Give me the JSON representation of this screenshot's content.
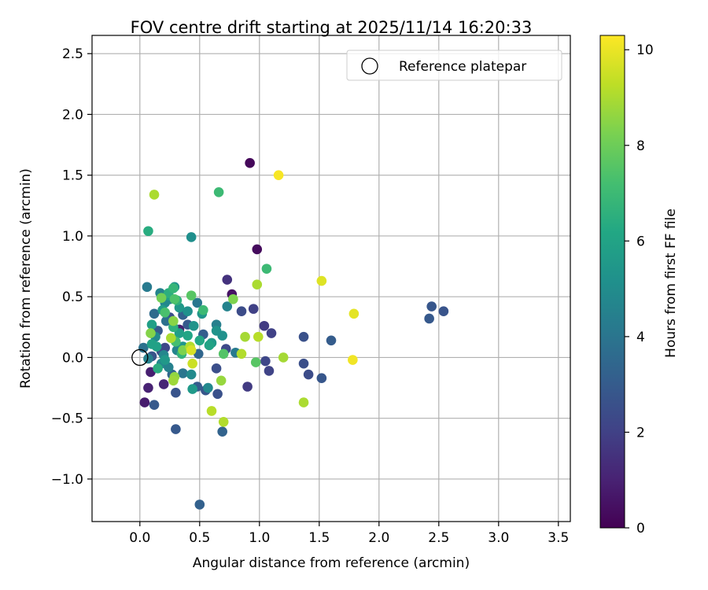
{
  "chart_data": {
    "type": "scatter",
    "title": "FOV centre drift starting at 2025/11/14 16:20:33",
    "xlabel": "Angular distance from reference (arcmin)",
    "ylabel": "Rotation from reference (arcmin)",
    "xlim": [
      -0.4,
      3.6
    ],
    "ylim": [
      -1.35,
      2.65
    ],
    "xticks": [
      0.0,
      0.5,
      1.0,
      1.5,
      2.0,
      2.5,
      3.0,
      3.5
    ],
    "xtick_labels": [
      "0.0",
      "0.5",
      "1.0",
      "1.5",
      "2.0",
      "2.5",
      "3.0",
      "3.5"
    ],
    "yticks": [
      -1.0,
      -0.5,
      0.0,
      0.5,
      1.0,
      1.5,
      2.0,
      2.5
    ],
    "ytick_labels": [
      "−1.0",
      "−0.5",
      "0.0",
      "0.5",
      "1.0",
      "1.5",
      "2.0",
      "2.5"
    ],
    "grid": true,
    "legend": {
      "position": "top-right",
      "label": "Reference platepar"
    },
    "reference_point": {
      "x": 0.0,
      "y": 0.0
    },
    "colorbar": {
      "label": "Hours from first FF file",
      "colormap": "viridis",
      "range": [
        0,
        10.3
      ],
      "ticks": [
        0,
        2,
        4,
        6,
        8,
        10
      ],
      "tick_labels": [
        "0",
        "2",
        "4",
        "6",
        "8",
        "10"
      ]
    },
    "series": [
      {
        "points": [
          {
            "x": 0.92,
            "y": 1.6,
            "hours": 0.2
          },
          {
            "x": 0.98,
            "y": 0.89,
            "hours": 0.3
          },
          {
            "x": 0.77,
            "y": 0.52,
            "hours": 0.5
          },
          {
            "x": 0.04,
            "y": -0.37,
            "hours": 0.8
          },
          {
            "x": 0.07,
            "y": -0.25,
            "hours": 1.0
          },
          {
            "x": 0.09,
            "y": -0.12,
            "hours": 0.9
          },
          {
            "x": 0.2,
            "y": -0.22,
            "hours": 1.1
          },
          {
            "x": 0.33,
            "y": 0.23,
            "hours": 0.9
          },
          {
            "x": 0.73,
            "y": 0.64,
            "hours": 1.5
          },
          {
            "x": 0.95,
            "y": 0.4,
            "hours": 2.0
          },
          {
            "x": 0.9,
            "y": -0.24,
            "hours": 1.8
          },
          {
            "x": 1.04,
            "y": 0.26,
            "hours": 1.8
          },
          {
            "x": 1.1,
            "y": 0.2,
            "hours": 2.0
          },
          {
            "x": 1.05,
            "y": -0.03,
            "hours": 2.2
          },
          {
            "x": 1.08,
            "y": -0.11,
            "hours": 2.1
          },
          {
            "x": 0.85,
            "y": 0.38,
            "hours": 2.4
          },
          {
            "x": 1.37,
            "y": -0.05,
            "hours": 2.5
          },
          {
            "x": 1.41,
            "y": -0.14,
            "hours": 2.4
          },
          {
            "x": 1.52,
            "y": -0.17,
            "hours": 2.8
          },
          {
            "x": 1.37,
            "y": 0.17,
            "hours": 2.6
          },
          {
            "x": 1.6,
            "y": 0.14,
            "hours": 3.0
          },
          {
            "x": 2.44,
            "y": 0.42,
            "hours": 2.8
          },
          {
            "x": 2.42,
            "y": 0.32,
            "hours": 2.9
          },
          {
            "x": 2.54,
            "y": 0.38,
            "hours": 2.7
          },
          {
            "x": 0.3,
            "y": -0.59,
            "hours": 2.9
          },
          {
            "x": 0.5,
            "y": -1.21,
            "hours": 3.2
          },
          {
            "x": 0.69,
            "y": -0.61,
            "hours": 3.3
          },
          {
            "x": 0.65,
            "y": -0.3,
            "hours": 2.6
          },
          {
            "x": 0.55,
            "y": -0.27,
            "hours": 2.8
          },
          {
            "x": 0.48,
            "y": -0.24,
            "hours": 3.0
          },
          {
            "x": 0.12,
            "y": -0.39,
            "hours": 2.9
          },
          {
            "x": 0.3,
            "y": -0.29,
            "hours": 2.7
          },
          {
            "x": 0.1,
            "y": 0.01,
            "hours": 2.7
          },
          {
            "x": 0.18,
            "y": 0.05,
            "hours": 2.6
          },
          {
            "x": 0.21,
            "y": 0.08,
            "hours": 2.2
          },
          {
            "x": 0.64,
            "y": -0.09,
            "hours": 2.5
          },
          {
            "x": 0.72,
            "y": 0.07,
            "hours": 2.3
          },
          {
            "x": 0.15,
            "y": 0.22,
            "hours": 2.9
          },
          {
            "x": 0.25,
            "y": 0.33,
            "hours": 2.5
          },
          {
            "x": 0.4,
            "y": 0.27,
            "hours": 2.9
          },
          {
            "x": 0.53,
            "y": 0.19,
            "hours": 3.1
          },
          {
            "x": 0.49,
            "y": 0.03,
            "hours": 3.4
          },
          {
            "x": 0.27,
            "y": -0.14,
            "hours": 3.4
          },
          {
            "x": 0.36,
            "y": 0.35,
            "hours": 3.2
          },
          {
            "x": 0.12,
            "y": 0.36,
            "hours": 3.6
          },
          {
            "x": 0.22,
            "y": 0.3,
            "hours": 3.8
          },
          {
            "x": 0.06,
            "y": 0.58,
            "hours": 4.2
          },
          {
            "x": 0.36,
            "y": -0.13,
            "hours": 4.0
          },
          {
            "x": 0.03,
            "y": 0.08,
            "hours": 3.9
          },
          {
            "x": 0.48,
            "y": 0.45,
            "hours": 4.1
          },
          {
            "x": 0.8,
            "y": 0.04,
            "hours": 4.2
          },
          {
            "x": 0.73,
            "y": 0.42,
            "hours": 4.6
          },
          {
            "x": 0.64,
            "y": 0.27,
            "hours": 4.4
          },
          {
            "x": 0.17,
            "y": 0.53,
            "hours": 4.6
          },
          {
            "x": 0.25,
            "y": 0.48,
            "hours": 4.4
          },
          {
            "x": 0.21,
            "y": 0.45,
            "hours": 4.8
          },
          {
            "x": 0.13,
            "y": 0.17,
            "hours": 4.9
          },
          {
            "x": 0.07,
            "y": -0.01,
            "hours": 4.5
          },
          {
            "x": 0.18,
            "y": -0.05,
            "hours": 4.8
          },
          {
            "x": 0.24,
            "y": -0.08,
            "hours": 4.5
          },
          {
            "x": 0.57,
            "y": -0.25,
            "hours": 4.8
          },
          {
            "x": 0.2,
            "y": 0.02,
            "hours": 4.7
          },
          {
            "x": 0.31,
            "y": 0.06,
            "hours": 4.6
          },
          {
            "x": 0.43,
            "y": -0.14,
            "hours": 4.9
          },
          {
            "x": 0.43,
            "y": 0.99,
            "hours": 5.1
          },
          {
            "x": 0.29,
            "y": 0.58,
            "hours": 5.3
          },
          {
            "x": 0.33,
            "y": 0.41,
            "hours": 5.5
          },
          {
            "x": 0.4,
            "y": 0.38,
            "hours": 5.2
          },
          {
            "x": 0.52,
            "y": 0.36,
            "hours": 5.4
          },
          {
            "x": 0.45,
            "y": 0.26,
            "hours": 5.3
          },
          {
            "x": 0.64,
            "y": 0.22,
            "hours": 5.3
          },
          {
            "x": 0.6,
            "y": 0.12,
            "hours": 5.6
          },
          {
            "x": 0.69,
            "y": 0.18,
            "hours": 5.2
          },
          {
            "x": 0.36,
            "y": 0.09,
            "hours": 5.4
          },
          {
            "x": 0.44,
            "y": -0.26,
            "hours": 5.6
          },
          {
            "x": 0.1,
            "y": 0.11,
            "hours": 5.9
          },
          {
            "x": 0.14,
            "y": 0.09,
            "hours": 5.9
          },
          {
            "x": 0.21,
            "y": -0.02,
            "hours": 5.5
          },
          {
            "x": 0.1,
            "y": 0.27,
            "hours": 5.8
          },
          {
            "x": 0.24,
            "y": 0.51,
            "hours": 5.8
          },
          {
            "x": 0.19,
            "y": 0.39,
            "hours": 5.7
          },
          {
            "x": 0.33,
            "y": 0.2,
            "hours": 5.8
          },
          {
            "x": 0.4,
            "y": 0.18,
            "hours": 6.1
          },
          {
            "x": 0.5,
            "y": 0.14,
            "hours": 6.2
          },
          {
            "x": 0.58,
            "y": 0.1,
            "hours": 6.0
          },
          {
            "x": 0.07,
            "y": 1.04,
            "hours": 6.4
          },
          {
            "x": 0.66,
            "y": 1.36,
            "hours": 7.0
          },
          {
            "x": 1.06,
            "y": 0.73,
            "hours": 7.0
          },
          {
            "x": 0.24,
            "y": 0.53,
            "hours": 6.5
          },
          {
            "x": 0.31,
            "y": 0.47,
            "hours": 6.6
          },
          {
            "x": 0.28,
            "y": 0.57,
            "hours": 6.8
          },
          {
            "x": 0.53,
            "y": 0.39,
            "hours": 7.0
          },
          {
            "x": 0.28,
            "y": 0.25,
            "hours": 6.6
          },
          {
            "x": 0.35,
            "y": 0.03,
            "hours": 6.7
          },
          {
            "x": 0.15,
            "y": -0.09,
            "hours": 6.4
          },
          {
            "x": 0.3,
            "y": 0.13,
            "hours": 7.2
          },
          {
            "x": 0.21,
            "y": 0.37,
            "hours": 7.3
          },
          {
            "x": 0.43,
            "y": 0.51,
            "hours": 7.6
          },
          {
            "x": 0.29,
            "y": 0.48,
            "hours": 7.4
          },
          {
            "x": 0.97,
            "y": -0.04,
            "hours": 7.6
          },
          {
            "x": 0.7,
            "y": 0.03,
            "hours": 7.5
          },
          {
            "x": 0.18,
            "y": 0.49,
            "hours": 8.1
          },
          {
            "x": 0.78,
            "y": 0.48,
            "hours": 8.3
          },
          {
            "x": 0.36,
            "y": 0.06,
            "hours": 8.3
          },
          {
            "x": 0.09,
            "y": 0.2,
            "hours": 8.4
          },
          {
            "x": 0.29,
            "y": -0.16,
            "hours": 8.6
          },
          {
            "x": 0.28,
            "y": -0.19,
            "hours": 8.8
          },
          {
            "x": 0.12,
            "y": 1.34,
            "hours": 9.0
          },
          {
            "x": 0.98,
            "y": 0.6,
            "hours": 9.0
          },
          {
            "x": 0.88,
            "y": 0.17,
            "hours": 8.9
          },
          {
            "x": 0.99,
            "y": 0.17,
            "hours": 9.2
          },
          {
            "x": 0.85,
            "y": 0.03,
            "hours": 9.1
          },
          {
            "x": 1.2,
            "y": 0.0,
            "hours": 8.9
          },
          {
            "x": 0.68,
            "y": -0.19,
            "hours": 8.7
          },
          {
            "x": 0.6,
            "y": -0.44,
            "hours": 9.2
          },
          {
            "x": 0.7,
            "y": -0.53,
            "hours": 9.1
          },
          {
            "x": 1.37,
            "y": -0.37,
            "hours": 9.0
          },
          {
            "x": 0.28,
            "y": 0.3,
            "hours": 8.5
          },
          {
            "x": 0.26,
            "y": 0.16,
            "hours": 9.0
          },
          {
            "x": 0.42,
            "y": 0.09,
            "hours": 9.1
          },
          {
            "x": 0.44,
            "y": -0.05,
            "hours": 9.5
          },
          {
            "x": 0.43,
            "y": 0.06,
            "hours": 9.7
          },
          {
            "x": 1.16,
            "y": 1.5,
            "hours": 10.2
          },
          {
            "x": 1.52,
            "y": 0.63,
            "hours": 9.8
          },
          {
            "x": 1.79,
            "y": 0.36,
            "hours": 9.9
          },
          {
            "x": 1.78,
            "y": -0.02,
            "hours": 10.1
          }
        ]
      }
    ]
  }
}
